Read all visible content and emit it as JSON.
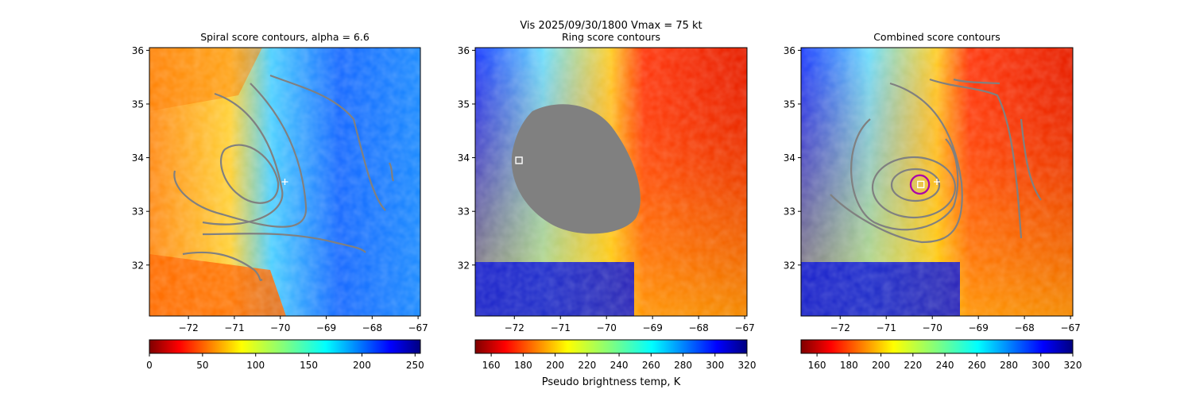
{
  "figure": {
    "suptitle_line1": "Vis  2025/09/30/1800    Vmax = 75 kt",
    "colorbar_label": "Pseudo brightness temp, K"
  },
  "chart_data": [
    {
      "type": "heatmap",
      "title": "Spiral score contours, alpha =  6.6",
      "xlim": [
        -72.85,
        -66.95
      ],
      "ylim": [
        31.05,
        36.05
      ],
      "x_ticks": [
        -72,
        -71,
        -70,
        -69,
        -68,
        -67
      ],
      "y_ticks": [
        32,
        33,
        34,
        35,
        36
      ],
      "x_tick_labels": [
        "−72",
        "−71",
        "−70",
        "−69",
        "−68",
        "−67"
      ],
      "y_tick_labels": [
        "32",
        "33",
        "34",
        "35",
        "36"
      ],
      "markers": [
        {
          "kind": "plus",
          "lon": -69.9,
          "lat": 33.55,
          "color": "#ffffff"
        }
      ],
      "colorbar": {
        "colormap": "jet_r",
        "range": [
          0,
          255
        ],
        "ticks": [
          0,
          50,
          100,
          150,
          200,
          250
        ],
        "tick_labels": [
          "0",
          "50",
          "100",
          "150",
          "200",
          "250"
        ]
      }
    },
    {
      "type": "heatmap",
      "title": "Ring score contours",
      "xlim": [
        -72.85,
        -66.95
      ],
      "ylim": [
        31.05,
        36.05
      ],
      "x_ticks": [
        -72,
        -71,
        -70,
        -69,
        -68,
        -67
      ],
      "y_ticks": [
        32,
        33,
        34,
        35,
        36
      ],
      "x_tick_labels": [
        "−72",
        "−71",
        "−70",
        "−69",
        "−68",
        "−67"
      ],
      "y_tick_labels": [
        "32",
        "33",
        "34",
        "35",
        "36"
      ],
      "markers": [
        {
          "kind": "square",
          "lon": -71.9,
          "lat": 33.95,
          "color": "#ffffff"
        }
      ],
      "colorbar": {
        "colormap": "jet_r",
        "range": [
          150,
          320
        ],
        "ticks": [
          160,
          180,
          200,
          220,
          240,
          260,
          280,
          300,
          320
        ],
        "tick_labels": [
          "160",
          "180",
          "200",
          "220",
          "240",
          "260",
          "280",
          "300",
          "320"
        ]
      }
    },
    {
      "type": "heatmap",
      "title": "Combined score contours",
      "xlim": [
        -72.85,
        -66.95
      ],
      "ylim": [
        31.05,
        36.05
      ],
      "x_ticks": [
        -72,
        -71,
        -70,
        -69,
        -68,
        -67
      ],
      "y_ticks": [
        32,
        33,
        34,
        35,
        36
      ],
      "x_tick_labels": [
        "−72",
        "−71",
        "−70",
        "−69",
        "−68",
        "−67"
      ],
      "y_tick_labels": [
        "32",
        "33",
        "34",
        "35",
        "36"
      ],
      "markers": [
        {
          "kind": "square",
          "lon": -70.25,
          "lat": 33.5,
          "color": "#ffffff"
        },
        {
          "kind": "plus",
          "lon": -69.9,
          "lat": 33.55,
          "color": "#ffffff"
        },
        {
          "kind": "circle",
          "lon": -70.27,
          "lat": 33.5,
          "radius_deg": 0.2,
          "color": "#aa00aa"
        }
      ],
      "colorbar": {
        "colormap": "jet_r",
        "range": [
          150,
          320
        ],
        "ticks": [
          160,
          180,
          200,
          220,
          240,
          260,
          280,
          300,
          320
        ],
        "tick_labels": [
          "160",
          "180",
          "200",
          "220",
          "240",
          "260",
          "280",
          "300",
          "320"
        ]
      }
    }
  ]
}
